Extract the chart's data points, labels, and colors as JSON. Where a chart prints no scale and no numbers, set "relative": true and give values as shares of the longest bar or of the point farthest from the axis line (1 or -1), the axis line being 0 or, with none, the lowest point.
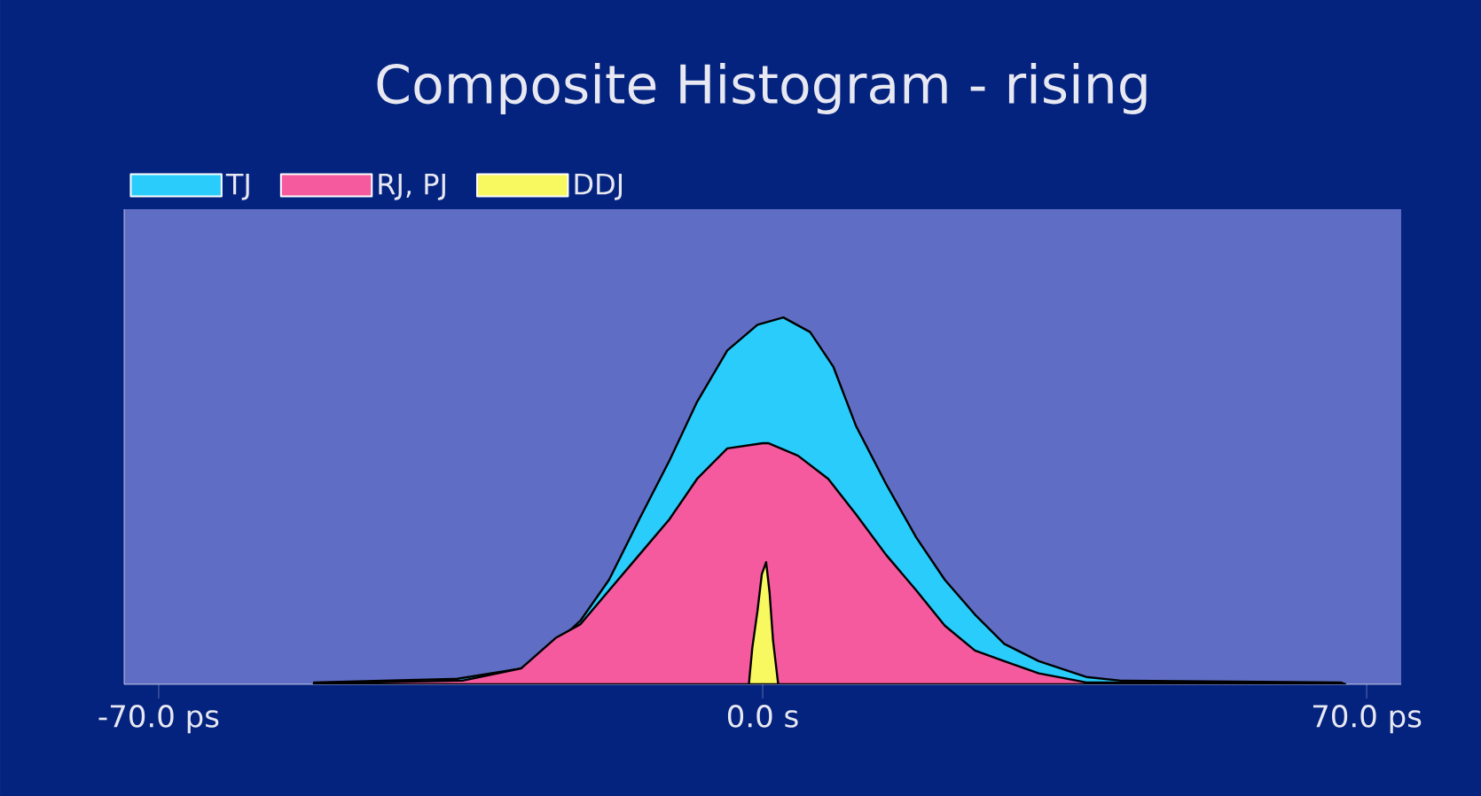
{
  "chart_data": {
    "type": "area",
    "title": "Composite Histogram - rising",
    "relative": true,
    "legend": "top left",
    "xlim": [
      -74,
      74
    ],
    "xticks": [
      {
        "value": -70,
        "label": "-70.0 ps"
      },
      {
        "value": 0,
        "label": "0.0 s"
      },
      {
        "value": 70,
        "label": "70.0 ps"
      }
    ],
    "series": [
      {
        "name": "TJ",
        "color": "#29ccfa",
        "x": [
          -52,
          -35.4,
          -28,
          -24,
          -21.1,
          -17.8,
          -14.3,
          -10.8,
          -7.6,
          -4.1,
          -0.6,
          2.4,
          5.5,
          8.2,
          10.8,
          14.3,
          17.8,
          21.1,
          24.6,
          28,
          32,
          37.5,
          41.5,
          67,
          67.5
        ],
        "values": [
          0.005,
          0.015,
          0.043,
          0.11,
          0.174,
          0.285,
          0.45,
          0.61,
          0.77,
          0.91,
          0.98,
          1,
          0.96,
          0.865,
          0.705,
          0.546,
          0.4,
          0.285,
          0.19,
          0.11,
          0.063,
          0.02,
          0.01,
          0.005,
          0
        ]
      },
      {
        "name": "RJ, PJ",
        "color": "#f55a9f",
        "x": [
          -52,
          -34.8,
          -28,
          -24,
          -21.1,
          -17.8,
          -14.3,
          -10.8,
          -7.6,
          -4.1,
          0,
          0.7,
          4.1,
          7.6,
          10.8,
          14.3,
          17.8,
          21.1,
          24.6,
          28,
          32,
          37.5,
          67,
          67.5
        ],
        "values": [
          0.003,
          0.01,
          0.043,
          0.126,
          0.164,
          0.256,
          0.353,
          0.45,
          0.56,
          0.643,
          0.657,
          0.657,
          0.623,
          0.56,
          0.464,
          0.353,
          0.256,
          0.16,
          0.092,
          0.063,
          0.03,
          0.005,
          0.003,
          0
        ]
      },
      {
        "name": "DDJ",
        "color": "#f8f860",
        "x": [
          -1.6,
          -1.2,
          -0.6,
          -0.1,
          0.4,
          0.8,
          1.2,
          1.8
        ],
        "values": [
          0,
          0.1,
          0.2,
          0.3,
          0.333,
          0.25,
          0.12,
          0
        ]
      }
    ]
  }
}
